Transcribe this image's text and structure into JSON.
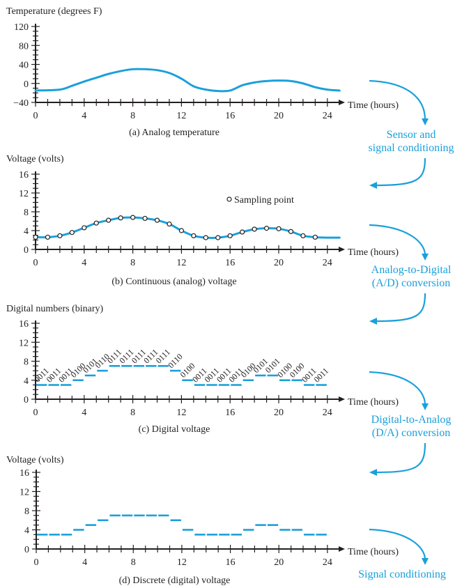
{
  "colors": {
    "signal": "#1aa0db",
    "axis": "#231f20",
    "flow_text": "#1a9fd9"
  },
  "chart_data": [
    {
      "id": "a",
      "type": "line",
      "title": "(a) Analog temperature",
      "ylabel": "Temperature (degrees F)",
      "xlabel": "Time (hours)",
      "xlim": [
        0,
        24
      ],
      "ylim": [
        -40,
        120
      ],
      "xticks": [
        0,
        4,
        8,
        12,
        16,
        20,
        24
      ],
      "yticks": [
        -40,
        0,
        40,
        80,
        120
      ],
      "ytick_labels": [
        "−40",
        "0",
        "40",
        "80",
        "120"
      ],
      "x": [
        0,
        2,
        3,
        4,
        5,
        6,
        7,
        8,
        9,
        10,
        11,
        12,
        13,
        14,
        15,
        16,
        17,
        18,
        19,
        20,
        21,
        22,
        23,
        24,
        25
      ],
      "y": [
        -15,
        -13,
        -5,
        4,
        12,
        20,
        26,
        30,
        30,
        28,
        22,
        10,
        -6,
        -13,
        -16,
        -15,
        -4,
        2,
        5,
        6,
        5,
        0,
        -8,
        -13,
        -15
      ]
    },
    {
      "id": "b",
      "type": "line",
      "title": "(b) Continuous (analog) voltage",
      "ylabel": "Voltage (volts)",
      "xlabel": "Time (hours)",
      "legend": "Sampling point",
      "xlim": [
        0,
        24
      ],
      "ylim": [
        0,
        16
      ],
      "xticks": [
        0,
        4,
        8,
        12,
        16,
        20,
        24
      ],
      "yticks": [
        0,
        4,
        8,
        12,
        16
      ],
      "ytick_labels": [
        "0",
        "4",
        "8",
        "12",
        "16"
      ],
      "x": [
        0,
        1,
        2,
        3,
        4,
        5,
        6,
        7,
        8,
        9,
        10,
        11,
        12,
        13,
        14,
        15,
        16,
        17,
        18,
        19,
        20,
        21,
        22,
        23,
        24,
        25
      ],
      "y": [
        2.6,
        2.6,
        2.9,
        3.6,
        4.6,
        5.6,
        6.2,
        6.7,
        6.8,
        6.6,
        6.2,
        5.4,
        4.0,
        2.9,
        2.5,
        2.5,
        2.9,
        3.7,
        4.3,
        4.5,
        4.4,
        3.8,
        2.9,
        2.6,
        2.5,
        2.5
      ],
      "samples_x": [
        0,
        1,
        2,
        3,
        4,
        5,
        6,
        7,
        8,
        9,
        10,
        11,
        12,
        13,
        14,
        15,
        16,
        17,
        18,
        19,
        20,
        21,
        22,
        23
      ],
      "samples_y": [
        2.6,
        2.6,
        2.9,
        3.6,
        4.6,
        5.6,
        6.2,
        6.7,
        6.8,
        6.6,
        6.2,
        5.4,
        4.0,
        2.9,
        2.5,
        2.5,
        2.9,
        3.7,
        4.3,
        4.5,
        4.4,
        3.8,
        2.9,
        2.6
      ]
    },
    {
      "id": "c",
      "type": "step",
      "title": "(c) Digital voltage",
      "ylabel": "Digital numbers (binary)",
      "xlabel": "Time (hours)",
      "xlim": [
        0,
        24
      ],
      "ylim": [
        0,
        16
      ],
      "xticks": [
        0,
        4,
        8,
        12,
        16,
        20,
        24
      ],
      "yticks": [
        0,
        4,
        8,
        12,
        16
      ],
      "ytick_labels": [
        "0",
        "4",
        "8",
        "12",
        "16"
      ],
      "values": [
        3,
        3,
        3,
        4,
        5,
        6,
        7,
        7,
        7,
        7,
        7,
        6,
        4,
        3,
        3,
        3,
        3,
        4,
        5,
        5,
        4,
        4,
        3,
        3
      ],
      "codes": [
        "0011",
        "0011",
        "0011",
        "0100",
        "0101",
        "0110",
        "0111",
        "0111",
        "0111",
        "0111",
        "0111",
        "0110",
        "0100",
        "0011",
        "0011",
        "0011",
        "0011",
        "0100",
        "0101",
        "0101",
        "0100",
        "0100",
        "0011",
        "0011"
      ]
    },
    {
      "id": "d",
      "type": "step",
      "title": "(d) Discrete (digital) voltage",
      "ylabel": "Voltage (volts)",
      "xlabel": "Time (hours)",
      "xlim": [
        0,
        24
      ],
      "ylim": [
        0,
        16
      ],
      "xticks": [
        0,
        4,
        8,
        12,
        16,
        20,
        24
      ],
      "yticks": [
        0,
        4,
        8,
        12,
        16
      ],
      "ytick_labels": [
        "0",
        "4",
        "8",
        "12",
        "16"
      ],
      "values": [
        3,
        3,
        3,
        4,
        5,
        6,
        7,
        7,
        7,
        7,
        7,
        6,
        4,
        3,
        3,
        3,
        3,
        4,
        5,
        5,
        4,
        4,
        3,
        3
      ]
    }
  ],
  "flow": [
    {
      "lines": [
        "Sensor and",
        "signal conditioning"
      ]
    },
    {
      "lines": [
        "Analog-to-Digital",
        "(A/D) conversion"
      ]
    },
    {
      "lines": [
        "Digital-to-Analog",
        "(D/A) conversion"
      ]
    },
    {
      "lines": [
        "Signal conditioning"
      ]
    }
  ]
}
